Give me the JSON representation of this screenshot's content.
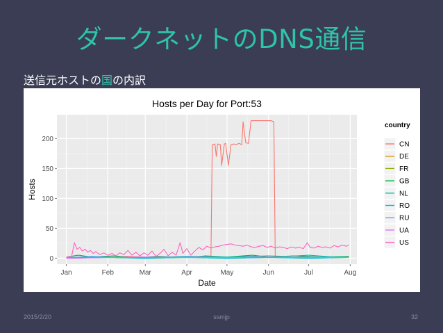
{
  "slide": {
    "title": "ダークネットのDNS通信",
    "subtitle_prefix": "送信元ホストの",
    "subtitle_highlight": "国",
    "subtitle_suffix": "の内訳",
    "accent_color": "#2fc3a8",
    "background_color": "#3a3d54"
  },
  "footer": {
    "date": "2015/2/20",
    "author": "ssmjp",
    "page": "32"
  },
  "chart_data": {
    "type": "line",
    "title": "Hosts per Day for Port:53",
    "xlabel": "Date",
    "ylabel": "Hosts",
    "ylim": [
      -10,
      240
    ],
    "yticks": [
      0,
      50,
      100,
      150,
      200
    ],
    "xlim": [
      "2014-12-25",
      "2015-08-06"
    ],
    "xticks": [
      {
        "date": "2015-01-01",
        "label": "Jan"
      },
      {
        "date": "2015-02-01",
        "label": "Feb"
      },
      {
        "date": "2015-03-01",
        "label": "Mar"
      },
      {
        "date": "2015-04-01",
        "label": "Apr"
      },
      {
        "date": "2015-05-01",
        "label": "May"
      },
      {
        "date": "2015-06-01",
        "label": "Jun"
      },
      {
        "date": "2015-07-01",
        "label": "Jul"
      },
      {
        "date": "2015-08-01",
        "label": "Aug"
      }
    ],
    "grid": true,
    "legend_title": "country",
    "legend_position": "right",
    "series": [
      {
        "name": "CN",
        "color": "#f8766d",
        "points": [
          [
            "2015-01-01",
            1
          ],
          [
            "2015-01-15",
            2
          ],
          [
            "2015-02-01",
            1
          ],
          [
            "2015-02-15",
            3
          ],
          [
            "2015-03-01",
            2
          ],
          [
            "2015-03-15",
            1
          ],
          [
            "2015-04-01",
            2
          ],
          [
            "2015-04-15",
            3
          ],
          [
            "2015-04-19",
            2
          ],
          [
            "2015-04-20",
            190
          ],
          [
            "2015-04-22",
            191
          ],
          [
            "2015-04-23",
            170
          ],
          [
            "2015-04-24",
            191
          ],
          [
            "2015-04-26",
            190
          ],
          [
            "2015-04-27",
            155
          ],
          [
            "2015-04-29",
            191
          ],
          [
            "2015-04-30",
            192
          ],
          [
            "2015-05-02",
            155
          ],
          [
            "2015-05-04",
            190
          ],
          [
            "2015-05-06",
            191
          ],
          [
            "2015-05-08",
            190
          ],
          [
            "2015-05-10",
            192
          ],
          [
            "2015-05-12",
            190
          ],
          [
            "2015-05-13",
            228
          ],
          [
            "2015-05-15",
            193
          ],
          [
            "2015-05-17",
            192
          ],
          [
            "2015-05-19",
            230
          ],
          [
            "2015-05-21",
            230
          ],
          [
            "2015-05-27",
            230
          ],
          [
            "2015-06-03",
            230
          ],
          [
            "2015-06-05",
            228
          ],
          [
            "2015-06-06",
            2
          ],
          [
            "2015-06-15",
            1
          ],
          [
            "2015-07-01",
            3
          ],
          [
            "2015-07-15",
            1
          ],
          [
            "2015-07-31",
            2
          ]
        ]
      },
      {
        "name": "DE",
        "color": "#d39200",
        "points": [
          [
            "2015-01-01",
            1
          ],
          [
            "2015-02-01",
            2
          ],
          [
            "2015-03-01",
            1
          ],
          [
            "2015-04-01",
            2
          ],
          [
            "2015-05-01",
            1
          ],
          [
            "2015-06-01",
            2
          ],
          [
            "2015-07-01",
            1
          ],
          [
            "2015-07-31",
            2
          ]
        ]
      },
      {
        "name": "FR",
        "color": "#93aa00",
        "points": [
          [
            "2015-01-01",
            0
          ],
          [
            "2015-02-01",
            1
          ],
          [
            "2015-03-01",
            0
          ],
          [
            "2015-04-01",
            1
          ],
          [
            "2015-05-01",
            0
          ],
          [
            "2015-06-01",
            1
          ],
          [
            "2015-07-01",
            0
          ],
          [
            "2015-07-31",
            1
          ]
        ]
      },
      {
        "name": "GB",
        "color": "#00ba38",
        "points": [
          [
            "2015-01-01",
            2
          ],
          [
            "2015-01-10",
            5
          ],
          [
            "2015-01-20",
            2
          ],
          [
            "2015-02-05",
            4
          ],
          [
            "2015-02-20",
            1
          ],
          [
            "2015-03-10",
            3
          ],
          [
            "2015-04-01",
            1
          ],
          [
            "2015-04-15",
            4
          ],
          [
            "2015-05-01",
            2
          ],
          [
            "2015-05-20",
            5
          ],
          [
            "2015-06-01",
            2
          ],
          [
            "2015-06-20",
            4
          ],
          [
            "2015-07-10",
            2
          ],
          [
            "2015-07-31",
            3
          ]
        ]
      },
      {
        "name": "NL",
        "color": "#00c19f",
        "points": [
          [
            "2015-01-01",
            1
          ],
          [
            "2015-02-01",
            2
          ],
          [
            "2015-03-01",
            1
          ],
          [
            "2015-04-01",
            3
          ],
          [
            "2015-05-01",
            2
          ],
          [
            "2015-06-01",
            4
          ],
          [
            "2015-06-15",
            3
          ],
          [
            "2015-07-01",
            5
          ],
          [
            "2015-07-20",
            2
          ],
          [
            "2015-07-31",
            3
          ]
        ]
      },
      {
        "name": "RO",
        "color": "#00b9e3",
        "points": [
          [
            "2015-01-01",
            0
          ],
          [
            "2015-02-01",
            1
          ],
          [
            "2015-03-01",
            0
          ],
          [
            "2015-04-01",
            1
          ],
          [
            "2015-05-01",
            0
          ],
          [
            "2015-06-01",
            1
          ],
          [
            "2015-07-01",
            0
          ],
          [
            "2015-07-31",
            1
          ]
        ]
      },
      {
        "name": "RU",
        "color": "#619cff",
        "points": [
          [
            "2015-01-01",
            1
          ],
          [
            "2015-01-20",
            3
          ],
          [
            "2015-02-10",
            1
          ],
          [
            "2015-03-01",
            2
          ],
          [
            "2015-03-20",
            1
          ],
          [
            "2015-04-10",
            3
          ],
          [
            "2015-05-01",
            1
          ],
          [
            "2015-05-20",
            2
          ],
          [
            "2015-06-10",
            1
          ],
          [
            "2015-07-01",
            2
          ],
          [
            "2015-07-31",
            1
          ]
        ]
      },
      {
        "name": "UA",
        "color": "#db72fb",
        "points": [
          [
            "2015-01-01",
            0
          ],
          [
            "2015-02-01",
            1
          ],
          [
            "2015-03-01",
            2
          ],
          [
            "2015-04-01",
            1
          ],
          [
            "2015-05-01",
            1
          ],
          [
            "2015-06-01",
            2
          ],
          [
            "2015-07-01",
            1
          ],
          [
            "2015-07-31",
            1
          ]
        ]
      },
      {
        "name": "US",
        "color": "#ff61c3",
        "points": [
          [
            "2015-01-01",
            2
          ],
          [
            "2015-01-05",
            3
          ],
          [
            "2015-01-07",
            26
          ],
          [
            "2015-01-09",
            15
          ],
          [
            "2015-01-11",
            18
          ],
          [
            "2015-01-13",
            12
          ],
          [
            "2015-01-15",
            15
          ],
          [
            "2015-01-17",
            10
          ],
          [
            "2015-01-19",
            13
          ],
          [
            "2015-01-21",
            8
          ],
          [
            "2015-01-23",
            11
          ],
          [
            "2015-01-26",
            6
          ],
          [
            "2015-01-29",
            9
          ],
          [
            "2015-02-01",
            5
          ],
          [
            "2015-02-04",
            8
          ],
          [
            "2015-02-07",
            4
          ],
          [
            "2015-02-10",
            9
          ],
          [
            "2015-02-13",
            6
          ],
          [
            "2015-02-16",
            13
          ],
          [
            "2015-02-19",
            5
          ],
          [
            "2015-02-22",
            10
          ],
          [
            "2015-02-25",
            4
          ],
          [
            "2015-02-28",
            9
          ],
          [
            "2015-03-03",
            5
          ],
          [
            "2015-03-06",
            12
          ],
          [
            "2015-03-09",
            3
          ],
          [
            "2015-03-12",
            8
          ],
          [
            "2015-03-15",
            15
          ],
          [
            "2015-03-18",
            4
          ],
          [
            "2015-03-21",
            10
          ],
          [
            "2015-03-24",
            5
          ],
          [
            "2015-03-27",
            26
          ],
          [
            "2015-03-29",
            8
          ],
          [
            "2015-04-01",
            16
          ],
          [
            "2015-04-04",
            5
          ],
          [
            "2015-04-07",
            12
          ],
          [
            "2015-04-10",
            18
          ],
          [
            "2015-04-13",
            14
          ],
          [
            "2015-04-16",
            20
          ],
          [
            "2015-04-19",
            17
          ],
          [
            "2015-04-22",
            19
          ],
          [
            "2015-04-25",
            20
          ],
          [
            "2015-04-28",
            22
          ],
          [
            "2015-05-01",
            23
          ],
          [
            "2015-05-04",
            24
          ],
          [
            "2015-05-07",
            22
          ],
          [
            "2015-05-10",
            21
          ],
          [
            "2015-05-13",
            20
          ],
          [
            "2015-05-16",
            22
          ],
          [
            "2015-05-19",
            19
          ],
          [
            "2015-05-22",
            18
          ],
          [
            "2015-05-25",
            20
          ],
          [
            "2015-05-28",
            21
          ],
          [
            "2015-05-31",
            18
          ],
          [
            "2015-06-03",
            20
          ],
          [
            "2015-06-06",
            17
          ],
          [
            "2015-06-09",
            19
          ],
          [
            "2015-06-12",
            18
          ],
          [
            "2015-06-15",
            16
          ],
          [
            "2015-06-18",
            19
          ],
          [
            "2015-06-21",
            17
          ],
          [
            "2015-06-24",
            18
          ],
          [
            "2015-06-27",
            16
          ],
          [
            "2015-06-30",
            26
          ],
          [
            "2015-07-02",
            18
          ],
          [
            "2015-07-05",
            17
          ],
          [
            "2015-07-08",
            20
          ],
          [
            "2015-07-11",
            18
          ],
          [
            "2015-07-14",
            19
          ],
          [
            "2015-07-17",
            17
          ],
          [
            "2015-07-20",
            21
          ],
          [
            "2015-07-23",
            19
          ],
          [
            "2015-07-26",
            22
          ],
          [
            "2015-07-29",
            20
          ],
          [
            "2015-07-31",
            22
          ]
        ]
      }
    ]
  }
}
